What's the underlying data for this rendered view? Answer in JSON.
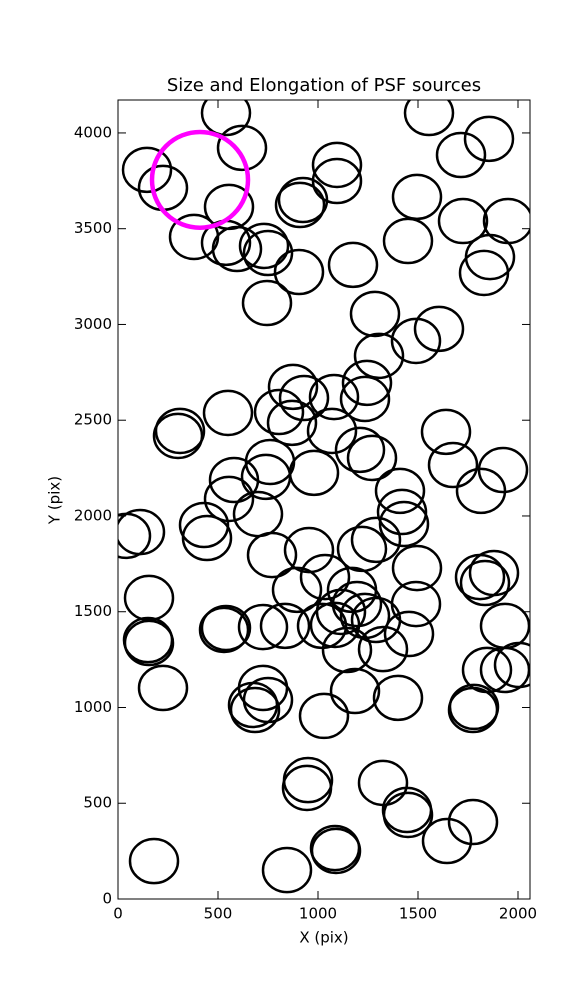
{
  "chart_data": {
    "type": "ellipse",
    "title": "Size and Elongation of PSF sources",
    "xlabel": "X (pix)",
    "ylabel": "Y (pix)",
    "xlim": [
      0,
      2060
    ],
    "ylim": [
      0,
      4172
    ],
    "xticks": [
      0,
      500,
      1000,
      1500,
      2000
    ],
    "yticks": [
      0,
      500,
      1000,
      1500,
      2000,
      2500,
      3000,
      3500,
      4000
    ],
    "series": [
      {
        "color": "#000000",
        "width": 240,
        "height": 230,
        "x": [
          145,
          225,
          540,
          620,
          555,
          380,
          540,
          595,
          730,
          750,
          910,
          925,
          1095,
          1095,
          905,
          745,
          1175,
          1555,
          1855,
          1715,
          1495,
          1725,
          1950,
          1450,
          1860,
          1830,
          1285,
          1605,
          1490,
          1305,
          1245,
          1235,
          875,
          930,
          1080,
          805,
          870,
          1070,
          550,
          310,
          300,
          1640,
          1675,
          1925,
          1815,
          1210,
          1270,
          980,
          760,
          740,
          580,
          555,
          700,
          430,
          445,
          110,
          40,
          1410,
          1420,
          1430,
          1290,
          1220,
          955,
          770,
          1495,
          1810,
          1880,
          1835,
          1035,
          895,
          1170,
          1490,
          155,
          1195,
          1115,
          1235,
          1290,
          1085,
          835,
          1020,
          725,
          540,
          530,
          1455,
          1935,
          1325,
          1145,
          150,
          155,
          2005,
          1845,
          1935,
          225,
          725,
          750,
          1185,
          1400,
          675,
          685,
          1780,
          1775,
          1030,
          950,
          945,
          1325,
          1445,
          1450,
          1775,
          1645,
          1085,
          1090,
          180,
          845
        ],
        "y": [
          3807,
          3713,
          4104,
          3922,
          3614,
          3457,
          3426,
          3394,
          3410,
          3373,
          3624,
          3650,
          3833,
          3749,
          3274,
          3112,
          3311,
          4104,
          3969,
          3885,
          3666,
          3540,
          3540,
          3436,
          3352,
          3269,
          3055,
          2977,
          2914,
          2836,
          2695,
          2611,
          2674,
          2616,
          2621,
          2543,
          2486,
          2444,
          2538,
          2444,
          2418,
          2439,
          2266,
          2240,
          2131,
          2345,
          2303,
          2225,
          2282,
          2204,
          2188,
          2089,
          2010,
          1953,
          1885,
          1916,
          1896,
          2131,
          2021,
          1958,
          1875,
          1828,
          1822,
          1796,
          1728,
          1681,
          1702,
          1650,
          1681,
          1614,
          1614,
          1540,
          1572,
          1540,
          1499,
          1478,
          1457,
          1431,
          1426,
          1426,
          1420,
          1415,
          1405,
          1384,
          1426,
          1305,
          1300,
          1352,
          1337,
          1222,
          1196,
          1196,
          1102,
          1102,
          1039,
          1086,
          1050,
          1013,
          987,
          1003,
          987,
          956,
          621,
          580,
          606,
          465,
          439,
          402,
          303,
          266,
          251,
          198,
          151
        ]
      },
      {
        "color": "#ff00ff",
        "width": 480,
        "height": 500,
        "x": [
          410
        ],
        "y": [
          3755
        ]
      }
    ]
  }
}
